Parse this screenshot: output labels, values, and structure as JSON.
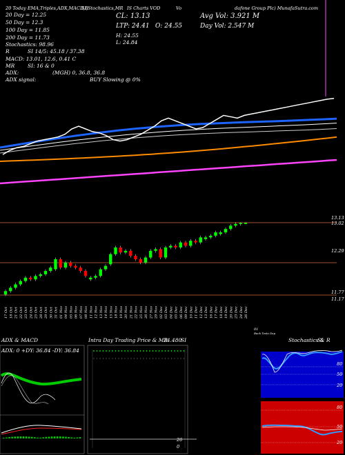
{
  "header": {
    "line1_left": "20 Today  EMA,Triples,ADX,MACD,B",
    "line1_mid": "SI,Stochastics,MR",
    "line1_mid2": "IS Charts VOD",
    "line1_right": "Vo",
    "line1_company": "dafone Group Plc) MunafaSutra.com",
    "ema20": "20  Day = 12.25",
    "ema50": "50  Day = 12.3",
    "ema100": "100  Day = 11.85",
    "ema200": "200  Day = 11.73",
    "stoch": "Stochastics: 98.96",
    "r": "R",
    "si": "SI 14/5: 45.18 / 37.38",
    "macd": "MACD: 13.01, 12.6, 0.41 C",
    "mr": "MR",
    "si_vals": "SI: 16  &  0",
    "adx": "ADX:",
    "adx_vals": "(MGH) 0, 36.8, 36.8",
    "adx_signal": "ADX  signal:",
    "buy": "BUY Slowing @ 0%",
    "cl": "CL: 13.13",
    "ltp": "LTP: 24.41",
    "open": "O: 24.55",
    "high": "H: 24.55",
    "low": "L: 24.84",
    "avg_vol": "Avg Vol: 3.921 M",
    "day_vol": "Day Vol: 2.547 M"
  },
  "price_labels": {
    "p1": "13.13",
    "p2": "13.02",
    "p3": "12.29",
    "p4": "11.77",
    "p5": "11.17"
  },
  "dates": [
    "17 Oct",
    "18 Oct",
    "21 Oct",
    "22 Oct",
    "23 Oct",
    "24 Oct",
    "25 Oct",
    "28 Oct",
    "29 Oct",
    "30 Oct",
    "31 Oct",
    "01 Nov",
    "04 Nov",
    "05 Nov",
    "06 Nov",
    "07 Nov",
    "08 Nov",
    "11 Nov",
    "12 Nov",
    "13 Nov",
    "14 Nov",
    "15 Nov",
    "18 Nov",
    "19 Nov",
    "20 Nov",
    "21 Nov",
    "22 Nov",
    "25 Nov",
    "26 Nov",
    "27 Nov",
    "29 Nov",
    "02 Dec",
    "03 Dec",
    "04 Dec",
    "05 Dec",
    "06 Dec",
    "09 Dec",
    "10 Dec",
    "11 Dec",
    "12 Dec",
    "13 Dec",
    "16 Dec",
    "17 Dec",
    "18 Dec",
    "19 Dec",
    "20 Dec",
    "23 Dec",
    "24 Dec",
    "26 Dec"
  ],
  "date_footer": {
    "left": "01",
    "right": "Back Tests  Dep"
  },
  "panels": {
    "adx_macd_title": "ADX  & MACD",
    "adx_line": "ADX: 0  +DY: 36.84  -DY: 36.84",
    "intraday_title": "Intra Day Trading Price  & MR",
    "intraday_value": "24.480",
    "intraday_si": "SI",
    "intraday_y": "0",
    "intraday_y2": "26",
    "stoch_title": "Stochastics & R",
    "stoch_si": "SI",
    "stoch_labels": [
      "80",
      "50",
      "20"
    ],
    "rsi_labels": [
      "80",
      "50",
      "20"
    ]
  },
  "colors": {
    "price_line": "#ffffff",
    "ema20": "#1e64ff",
    "ema50": "#ffffff",
    "ema100": "#ff8c00",
    "ema200": "#ff44ff",
    "up": "#00ff00",
    "down": "#ff0000",
    "grid_price": "#a0522d",
    "stoch_bg": "#0000cc",
    "rsi_bg": "#cc0000",
    "adx_green": "#00cc00"
  },
  "chart_data": {
    "type": "line",
    "title": "",
    "x": [
      "17 Oct",
      "18 Oct",
      "21 Oct",
      "22 Oct",
      "23 Oct",
      "24 Oct",
      "25 Oct",
      "28 Oct",
      "29 Oct",
      "30 Oct",
      "31 Oct",
      "01 Nov",
      "04 Nov",
      "05 Nov",
      "06 Nov",
      "07 Nov",
      "08 Nov",
      "11 Nov",
      "12 Nov",
      "13 Nov",
      "14 Nov",
      "15 Nov",
      "18 Nov",
      "19 Nov",
      "20 Nov",
      "21 Nov",
      "22 Nov",
      "25 Nov",
      "26 Nov",
      "27 Nov",
      "29 Nov",
      "02 Dec",
      "03 Dec",
      "04 Dec",
      "05 Dec",
      "06 Dec",
      "09 Dec",
      "10 Dec",
      "11 Dec",
      "12 Dec",
      "13 Dec",
      "16 Dec",
      "17 Dec",
      "18 Dec",
      "19 Dec",
      "20 Dec",
      "23 Dec",
      "24 Dec",
      "26 Dec"
    ],
    "series": [
      {
        "values": [
          11.05,
          11.2,
          11.3,
          11.35,
          11.45,
          11.55,
          11.6,
          11.65,
          11.7,
          11.8,
          12.0,
          12.1,
          12.0,
          11.9,
          11.85,
          11.75,
          11.6,
          11.55,
          11.6,
          11.7,
          11.8,
          11.95,
          12.1,
          12.3,
          12.4,
          12.3,
          12.2,
          12.1,
          12.0,
          12.05,
          12.2,
          12.35,
          12.5,
          12.45,
          12.4,
          12.5,
          12.55,
          12.6,
          12.65,
          12.7,
          12.75,
          12.8,
          12.85,
          12.9,
          12.95,
          13.0,
          13.05,
          13.1,
          13.13
        ]
      }
    ],
    "candles": [
      {
        "o": 11.0,
        "c": 11.1,
        "h": 11.15,
        "l": 10.95
      },
      {
        "o": 11.1,
        "c": 11.2,
        "h": 11.25,
        "l": 11.05
      },
      {
        "o": 11.2,
        "c": 11.3,
        "h": 11.35,
        "l": 11.15
      },
      {
        "o": 11.3,
        "c": 11.4,
        "h": 11.45,
        "l": 11.25
      },
      {
        "o": 11.4,
        "c": 11.5,
        "h": 11.55,
        "l": 11.35
      },
      {
        "o": 11.5,
        "c": 11.45,
        "h": 11.55,
        "l": 11.4
      },
      {
        "o": 11.45,
        "c": 11.55,
        "h": 11.6,
        "l": 11.4
      },
      {
        "o": 11.55,
        "c": 11.6,
        "h": 11.65,
        "l": 11.5
      },
      {
        "o": 11.6,
        "c": 11.7,
        "h": 11.75,
        "l": 11.55
      },
      {
        "o": 11.7,
        "c": 11.8,
        "h": 11.85,
        "l": 11.65
      },
      {
        "o": 11.75,
        "c": 12.05,
        "h": 12.1,
        "l": 11.7
      },
      {
        "o": 12.05,
        "c": 11.8,
        "h": 12.1,
        "l": 11.75
      },
      {
        "o": 11.8,
        "c": 11.95,
        "h": 12.0,
        "l": 11.75
      },
      {
        "o": 11.95,
        "c": 11.85,
        "h": 12.0,
        "l": 11.8
      },
      {
        "o": 11.85,
        "c": 11.8,
        "h": 11.9,
        "l": 11.75
      },
      {
        "o": 11.8,
        "c": 11.7,
        "h": 11.85,
        "l": 11.65
      },
      {
        "o": 11.7,
        "c": 11.55,
        "h": 11.75,
        "l": 11.5
      },
      {
        "o": 11.45,
        "c": 11.5,
        "h": 11.55,
        "l": 11.4
      },
      {
        "o": 11.5,
        "c": 11.55,
        "h": 11.6,
        "l": 11.45
      },
      {
        "o": 11.55,
        "c": 11.75,
        "h": 11.8,
        "l": 11.5
      },
      {
        "o": 11.75,
        "c": 11.85,
        "h": 11.9,
        "l": 11.7
      },
      {
        "o": 11.9,
        "c": 12.2,
        "h": 12.25,
        "l": 11.85
      },
      {
        "o": 12.2,
        "c": 12.4,
        "h": 12.45,
        "l": 12.15
      },
      {
        "o": 12.4,
        "c": 12.25,
        "h": 12.45,
        "l": 12.2
      },
      {
        "o": 12.25,
        "c": 12.3,
        "h": 12.35,
        "l": 12.2
      },
      {
        "o": 12.3,
        "c": 12.15,
        "h": 12.35,
        "l": 12.1
      },
      {
        "o": 12.15,
        "c": 12.05,
        "h": 12.2,
        "l": 12.0
      },
      {
        "o": 12.05,
        "c": 11.95,
        "h": 12.1,
        "l": 11.9
      },
      {
        "o": 11.95,
        "c": 12.1,
        "h": 12.15,
        "l": 11.9
      },
      {
        "o": 12.1,
        "c": 12.3,
        "h": 12.35,
        "l": 12.05
      },
      {
        "o": 12.3,
        "c": 12.35,
        "h": 12.4,
        "l": 12.25
      },
      {
        "o": 12.35,
        "c": 12.1,
        "h": 12.4,
        "l": 12.05
      },
      {
        "o": 12.1,
        "c": 12.4,
        "h": 12.45,
        "l": 12.05
      },
      {
        "o": 12.4,
        "c": 12.45,
        "h": 12.5,
        "l": 12.35
      },
      {
        "o": 12.45,
        "c": 12.4,
        "h": 12.5,
        "l": 12.35
      },
      {
        "o": 12.4,
        "c": 12.55,
        "h": 12.6,
        "l": 12.35
      },
      {
        "o": 12.55,
        "c": 12.45,
        "h": 12.6,
        "l": 12.4
      },
      {
        "o": 12.45,
        "c": 12.6,
        "h": 12.65,
        "l": 12.4
      },
      {
        "o": 12.6,
        "c": 12.55,
        "h": 12.65,
        "l": 12.5
      },
      {
        "o": 12.55,
        "c": 12.7,
        "h": 12.75,
        "l": 12.5
      },
      {
        "o": 12.65,
        "c": 12.7,
        "h": 12.75,
        "l": 12.6
      },
      {
        "o": 12.7,
        "c": 12.75,
        "h": 12.8,
        "l": 12.65
      },
      {
        "o": 12.75,
        "c": 12.85,
        "h": 12.9,
        "l": 12.7
      },
      {
        "o": 12.8,
        "c": 12.85,
        "h": 12.9,
        "l": 12.75
      },
      {
        "o": 12.85,
        "c": 12.95,
        "h": 13.0,
        "l": 12.8
      },
      {
        "o": 12.95,
        "c": 13.05,
        "h": 13.1,
        "l": 12.9
      },
      {
        "o": 13.05,
        "c": 13.1,
        "h": 13.15,
        "l": 13.0
      },
      {
        "o": 13.1,
        "c": 13.13,
        "h": 13.15,
        "l": 13.05
      },
      {
        "o": 13.13,
        "c": 13.13,
        "h": 13.15,
        "l": 13.1
      }
    ],
    "ylim": [
      10.9,
      13.2
    ]
  }
}
